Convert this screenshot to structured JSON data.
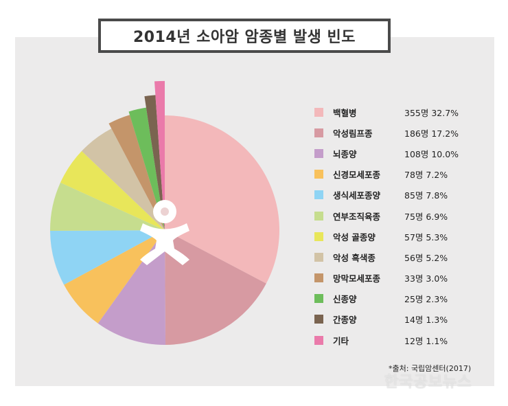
{
  "title": "2014년 소아암 암종별 발생 빈도",
  "source": "*출처: 국립암센터(2017)",
  "watermark": "한국공보뉴스",
  "chart_data": {
    "type": "pie",
    "title": "2014년 소아암 암종별 발생 빈도",
    "series": [
      {
        "label": "백혈병",
        "count": "355명",
        "percent": 32.7,
        "display_percent": "32.7%",
        "color": "#f3b8ba"
      },
      {
        "label": "악성림프종",
        "count": "186명",
        "percent": 17.2,
        "display_percent": "17.2%",
        "color": "#d79aa2"
      },
      {
        "label": "뇌종양",
        "count": "108명",
        "percent": 10.0,
        "display_percent": "10.0%",
        "color": "#c49dca"
      },
      {
        "label": "신경모세포종",
        "count": "78명",
        "percent": 7.2,
        "display_percent": "7.2%",
        "color": "#f8c15c"
      },
      {
        "label": "생식세포종양",
        "count": "85명",
        "percent": 7.8,
        "display_percent": "7.8%",
        "color": "#8fd4f4"
      },
      {
        "label": "연부조직육종",
        "count": "75명",
        "percent": 6.9,
        "display_percent": "6.9%",
        "color": "#c6dd8e"
      },
      {
        "label": "악성 골종양",
        "count": "57명",
        "percent": 5.3,
        "display_percent": "5.3%",
        "color": "#e8e65a"
      },
      {
        "label": "악성 흑색종",
        "count": "56명",
        "percent": 5.2,
        "display_percent": "5.2%",
        "color": "#d2c3a6"
      },
      {
        "label": "망막모세포종",
        "count": "33명",
        "percent": 3.0,
        "display_percent": "3.0%",
        "color": "#c4956a"
      },
      {
        "label": "신종양",
        "count": "25명",
        "percent": 2.3,
        "display_percent": "2.3%",
        "color": "#6dbd5b"
      },
      {
        "label": "간종양",
        "count": "14명",
        "percent": 1.3,
        "display_percent": "1.3%",
        "color": "#7a6450"
      },
      {
        "label": "기타",
        "count": "12명",
        "percent": 1.1,
        "display_percent": "1.1%",
        "color": "#ea7aaa"
      }
    ],
    "legend_position": "right"
  }
}
